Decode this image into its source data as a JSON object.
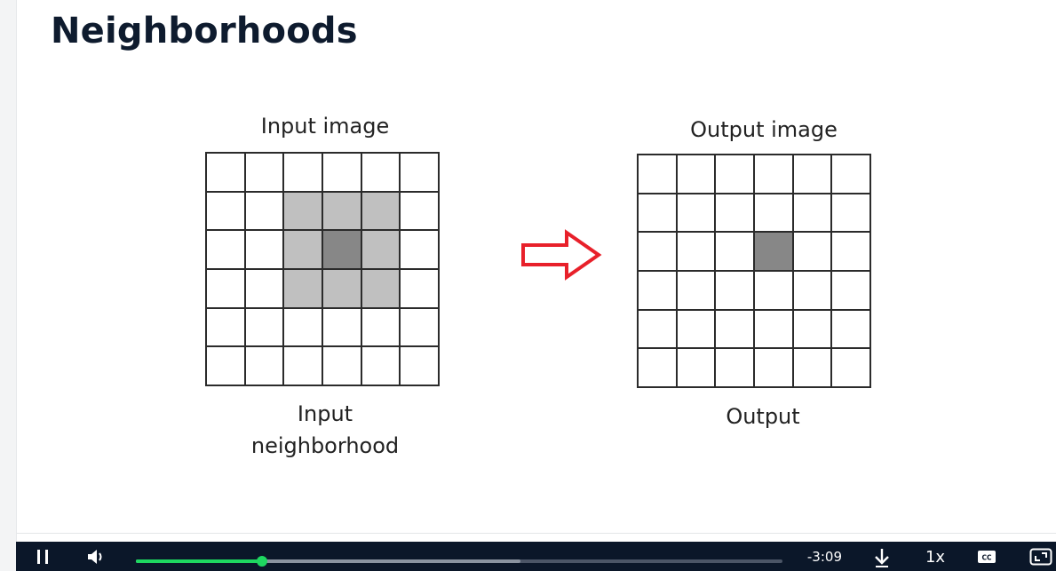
{
  "slide": {
    "title": "Neighborhoods",
    "input_caption": "Input image",
    "output_caption": "Output image",
    "input_neighborhood_caption_line1": "Input",
    "input_neighborhood_caption_line2": "neighborhood",
    "output_pixel_caption": "Output"
  },
  "figure": {
    "grid_size": 6,
    "input_neighborhood_cells": [
      [
        1,
        2
      ],
      [
        1,
        3
      ],
      [
        1,
        4
      ],
      [
        2,
        2
      ],
      [
        2,
        4
      ],
      [
        3,
        2
      ],
      [
        3,
        3
      ],
      [
        3,
        4
      ]
    ],
    "input_center_cell": [
      2,
      3
    ],
    "output_center_cell": [
      2,
      3
    ],
    "colors": {
      "neighborhood": "#c0c0c0",
      "center": "#878787",
      "arrow": "#e8202a",
      "lines": "#2b2b2b"
    }
  },
  "player": {
    "time_remaining": "-3:09",
    "speed_label": "1x",
    "cc_label": "CC",
    "progress_played": 0.195,
    "progress_buffered": 0.595,
    "colors": {
      "bar_bg": "#0b1729",
      "played": "#1ed760",
      "buffered": "#8a93a0",
      "track": "#4b5566"
    },
    "icons": [
      "pause-icon",
      "volume-icon",
      "download-icon",
      "captions-icon",
      "fullscreen-icon"
    ]
  }
}
